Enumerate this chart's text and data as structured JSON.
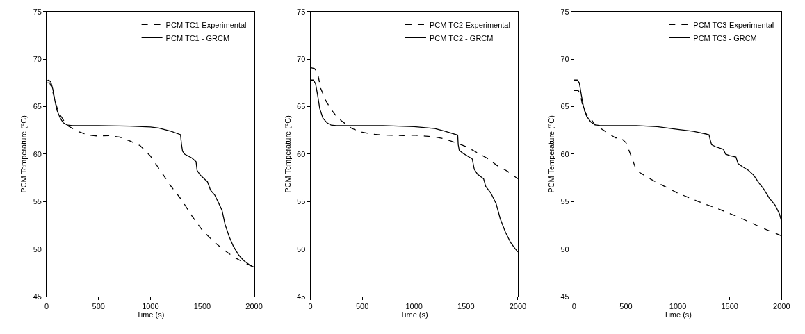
{
  "chart_data": [
    {
      "type": "line",
      "xlabel": "Time (s)",
      "ylabel": "PCM Temperature (°C)",
      "xlim": [
        0,
        2000
      ],
      "xticks": [
        0,
        500,
        1000,
        1500,
        2000
      ],
      "ylim": [
        45,
        75
      ],
      "yticks": [
        45,
        50,
        55,
        60,
        65,
        70,
        75
      ],
      "grid": false,
      "legend": "top right",
      "marker": "none",
      "series": [
        {
          "name": "PCM TC1-Experimental",
          "color": "#000000",
          "line_style": "dashed",
          "x": [
            0,
            30,
            60,
            90,
            120,
            160,
            200,
            300,
            400,
            500,
            600,
            700,
            800,
            900,
            1000,
            1100,
            1200,
            1300,
            1400,
            1500,
            1600,
            1700,
            1800,
            1900,
            2000
          ],
          "values": [
            67.5,
            67.5,
            66.5,
            65.2,
            64.3,
            63.6,
            63.0,
            62.4,
            62.0,
            61.9,
            61.95,
            61.8,
            61.4,
            60.9,
            59.8,
            58.2,
            56.6,
            55.2,
            53.5,
            52.0,
            50.9,
            50.0,
            49.2,
            48.6,
            48.1
          ]
        },
        {
          "name": "PCM TC1 - GRCM",
          "color": "#000000",
          "line_style": "solid",
          "x": [
            0,
            20,
            40,
            60,
            80,
            100,
            130,
            160,
            200,
            250,
            500,
            800,
            1000,
            1080,
            1200,
            1290,
            1300,
            1310,
            1330,
            1400,
            1440,
            1450,
            1480,
            1530,
            1550,
            1580,
            1620,
            1660,
            1690,
            1720,
            1760,
            1800,
            1850,
            1900,
            1950,
            2000
          ],
          "values": [
            67.7,
            67.8,
            67.6,
            66.8,
            65.6,
            64.6,
            63.8,
            63.3,
            63.05,
            63.0,
            63.0,
            62.95,
            62.85,
            62.75,
            62.4,
            62.05,
            61.0,
            60.3,
            60.0,
            59.6,
            59.2,
            58.3,
            57.8,
            57.3,
            57.1,
            56.2,
            55.7,
            54.8,
            54.1,
            52.6,
            51.3,
            50.3,
            49.4,
            48.8,
            48.4,
            48.1
          ]
        }
      ]
    },
    {
      "type": "line",
      "xlabel": "Time (s)",
      "ylabel": "PCM Temperature (°C)",
      "xlim": [
        0,
        2000
      ],
      "xticks": [
        0,
        500,
        1000,
        1500,
        2000
      ],
      "ylim": [
        45,
        75
      ],
      "yticks": [
        45,
        50,
        55,
        60,
        65,
        70,
        75
      ],
      "grid": false,
      "legend": "top right",
      "marker": "none",
      "series": [
        {
          "name": "PCM TC2-Experimental",
          "color": "#000000",
          "line_style": "dashed",
          "x": [
            0,
            40,
            70,
            100,
            150,
            200,
            250,
            300,
            400,
            500,
            600,
            700,
            900,
            1000,
            1200,
            1300,
            1400,
            1500,
            1600,
            1700,
            1800,
            1900,
            2000
          ],
          "values": [
            69.1,
            69.0,
            68.5,
            66.9,
            65.6,
            64.7,
            64.0,
            63.5,
            62.7,
            62.3,
            62.1,
            62.0,
            61.95,
            62.0,
            61.8,
            61.6,
            61.2,
            60.8,
            60.2,
            59.6,
            58.8,
            58.2,
            57.4
          ]
        },
        {
          "name": "PCM TC2 - GRCM",
          "color": "#000000",
          "line_style": "solid",
          "x": [
            0,
            30,
            50,
            70,
            90,
            120,
            160,
            200,
            250,
            700,
            1000,
            1200,
            1300,
            1420,
            1425,
            1435,
            1470,
            1560,
            1580,
            1610,
            1670,
            1690,
            1740,
            1790,
            1830,
            1880,
            1930,
            1970,
            2000
          ],
          "values": [
            67.8,
            67.8,
            67.4,
            66.2,
            64.8,
            63.8,
            63.3,
            63.05,
            63.0,
            63.0,
            62.9,
            62.7,
            62.4,
            62.0,
            61.0,
            60.4,
            60.1,
            59.5,
            58.4,
            57.9,
            57.4,
            56.6,
            55.9,
            54.8,
            53.2,
            51.8,
            50.7,
            50.1,
            49.7
          ]
        }
      ]
    },
    {
      "type": "line",
      "xlabel": "Time (s)",
      "ylabel": "PCM Temperature (°C)",
      "xlim": [
        0,
        2000
      ],
      "xticks": [
        0,
        500,
        1000,
        1500,
        2000
      ],
      "ylim": [
        45,
        75
      ],
      "yticks": [
        45,
        50,
        55,
        60,
        65,
        70,
        75
      ],
      "grid": false,
      "legend": "top right",
      "marker": "none",
      "series": [
        {
          "name": "PCM TC3-Experimental",
          "color": "#000000",
          "line_style": "dashed",
          "x": [
            0,
            40,
            60,
            80,
            110,
            150,
            200,
            300,
            400,
            450,
            500,
            550,
            600,
            700,
            800,
            1000,
            1200,
            1400,
            1600,
            1800,
            2000
          ],
          "values": [
            66.7,
            66.7,
            66.3,
            65.2,
            64.3,
            63.9,
            63.1,
            62.4,
            61.7,
            61.7,
            61.2,
            59.8,
            58.3,
            57.6,
            57.0,
            55.9,
            55.0,
            54.2,
            53.3,
            52.3,
            51.4
          ]
        },
        {
          "name": "PCM TC3 - GRCM",
          "color": "#000000",
          "line_style": "solid",
          "x": [
            0,
            30,
            50,
            70,
            90,
            120,
            160,
            200,
            250,
            600,
            800,
            1000,
            1150,
            1300,
            1310,
            1325,
            1360,
            1440,
            1460,
            1500,
            1560,
            1580,
            1620,
            1680,
            1730,
            1780,
            1830,
            1880,
            1940,
            1980,
            2000
          ],
          "values": [
            67.8,
            67.8,
            67.5,
            66.2,
            65.0,
            64.0,
            63.4,
            63.1,
            63.0,
            63.0,
            62.9,
            62.6,
            62.4,
            62.05,
            61.6,
            61.0,
            60.8,
            60.5,
            60.0,
            59.85,
            59.7,
            59.0,
            58.7,
            58.3,
            57.8,
            57.0,
            56.3,
            55.4,
            54.6,
            53.7,
            52.9
          ]
        }
      ]
    }
  ]
}
